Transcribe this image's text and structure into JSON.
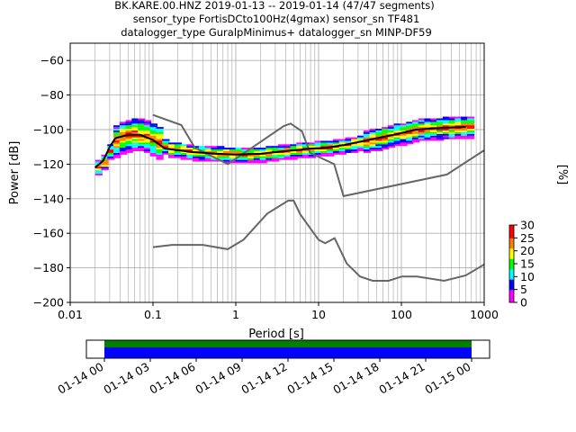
{
  "title": {
    "line1": "BK.KARE.00.HNZ   2019-01-13 -- 2019-01-14  (47/47 segments)",
    "line2": "sensor_type FortisDCto100Hz(4gmax) sensor_sn TF481",
    "line3": "datalogger_type GuralpMinimus+ datalogger_sn MINP-DF59"
  },
  "chart_data": {
    "type": "heatmap",
    "xlabel": "Period [s]",
    "ylabel": "Power [dB]",
    "x_scale": "log",
    "xlim": [
      0.01,
      1000
    ],
    "ylim": [
      -200,
      -50
    ],
    "x_ticks": [
      {
        "value": 0.01,
        "label": "0.01"
      },
      {
        "value": 0.1,
        "label": "0.1"
      },
      {
        "value": 1,
        "label": "1"
      },
      {
        "value": 10,
        "label": "10"
      },
      {
        "value": 100,
        "label": "100"
      },
      {
        "value": 1000,
        "label": "1000"
      }
    ],
    "y_ticks": [
      {
        "value": -60,
        "label": "−60"
      },
      {
        "value": -80,
        "label": "−80"
      },
      {
        "value": -100,
        "label": "−100"
      },
      {
        "value": -120,
        "label": "−120"
      },
      {
        "value": -140,
        "label": "−140"
      },
      {
        "value": -160,
        "label": "−160"
      },
      {
        "value": -180,
        "label": "−180"
      },
      {
        "value": -200,
        "label": "−200"
      }
    ],
    "grid": true,
    "nhnm": [
      [
        0.1,
        -91.5
      ],
      [
        0.22,
        -97.4
      ],
      [
        0.32,
        -110.5
      ],
      [
        0.8,
        -120
      ],
      [
        3.8,
        -97.9
      ],
      [
        4.6,
        -96.5
      ],
      [
        6.3,
        -101
      ],
      [
        7.9,
        -113.5
      ],
      [
        15.4,
        -120
      ],
      [
        20,
        -138.5
      ],
      [
        354.8,
        -126
      ],
      [
        1000,
        -112
      ]
    ],
    "nlnm": [
      [
        0.1,
        -168
      ],
      [
        0.17,
        -166.7
      ],
      [
        0.4,
        -166.7
      ],
      [
        0.8,
        -169.2
      ],
      [
        1.24,
        -163.7
      ],
      [
        2.4,
        -148.6
      ],
      [
        4.3,
        -141.1
      ],
      [
        5,
        -141.1
      ],
      [
        6,
        -149
      ],
      [
        10,
        -163.8
      ],
      [
        12,
        -165.8
      ],
      [
        15.6,
        -162.8
      ],
      [
        21.9,
        -177.5
      ],
      [
        31.6,
        -185
      ],
      [
        45,
        -187.5
      ],
      [
        70,
        -187.5
      ],
      [
        101,
        -185
      ],
      [
        154,
        -185
      ],
      [
        328,
        -187.5
      ],
      [
        600,
        -184.4
      ],
      [
        1000,
        -178
      ]
    ],
    "mode_curve": [
      [
        0.02,
        -122
      ],
      [
        0.025,
        -118
      ],
      [
        0.03,
        -110
      ],
      [
        0.035,
        -105
      ],
      [
        0.05,
        -103
      ],
      [
        0.07,
        -103
      ],
      [
        0.1,
        -106
      ],
      [
        0.14,
        -111
      ],
      [
        0.3,
        -113
      ],
      [
        0.6,
        -114
      ],
      [
        1,
        -114.5
      ],
      [
        2,
        -114
      ],
      [
        3,
        -113
      ],
      [
        5,
        -112
      ],
      [
        8,
        -111
      ],
      [
        12,
        -110.5
      ],
      [
        20,
        -109
      ],
      [
        40,
        -106
      ],
      [
        80,
        -103
      ],
      [
        150,
        -100
      ],
      [
        300,
        -99
      ],
      [
        600,
        -98.5
      ]
    ],
    "colorbar": {
      "label": "[%]",
      "range": [
        0,
        30
      ],
      "ticks": [
        {
          "value": 0,
          "label": "0"
        },
        {
          "value": 5,
          "label": "5"
        },
        {
          "value": 10,
          "label": "10"
        },
        {
          "value": 15,
          "label": "15"
        },
        {
          "value": 20,
          "label": "20"
        },
        {
          "value": 25,
          "label": "25"
        },
        {
          "value": 30,
          "label": "30"
        }
      ],
      "colors": [
        "#ffffff",
        "#ff00ff",
        "#0000ff",
        "#00ffff",
        "#00ff00",
        "#ffff00",
        "#ff8000",
        "#ff0000"
      ]
    },
    "coverage": {
      "ticks": [
        "01-14 00",
        "01-14 03",
        "01-14 06",
        "01-14 09",
        "01-14 12",
        "01-14 15",
        "01-14 18",
        "01-14 21",
        "01-15 00"
      ],
      "data_color": "#0000ff",
      "ppsd_color": "#008000"
    }
  }
}
